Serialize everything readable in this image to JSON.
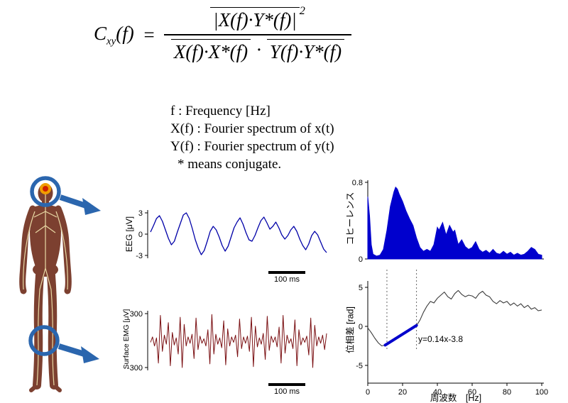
{
  "formula": {
    "lhs": "C",
    "lhs_sub": "xy",
    "lhs_arg": "(f)",
    "equals": "=",
    "numerator": "|X(f)·Y*(f)|",
    "exponent": "2",
    "den_left": "X(f)·X*(f)",
    "times": "·",
    "den_right": "Y(f)·Y*(f)"
  },
  "definitions": {
    "lines": [
      "f : Frequency [Hz]",
      "X(f) : Fourier spectrum of x(t)",
      "Y(f) : Fourier spectrum of y(t)",
      "* means conjugate."
    ]
  },
  "body_figure": {
    "ring_color": "#2b66ae",
    "arrow_color": "#2b66ae",
    "target_outer": "#f09d00",
    "target_inner": "#cf1f00",
    "body_color": "#7c4030",
    "nerve_color": "#e9d9a5"
  },
  "chart_data": [
    {
      "id": "eeg",
      "type": "line",
      "ylabel": "EEG [μV]",
      "yticks": [
        3,
        0,
        -3
      ],
      "ylim": [
        -3.6,
        3.6
      ],
      "scalebar_label": "100 ms",
      "color": "#0000a8",
      "values": [
        0.3,
        1.2,
        2.2,
        2.6,
        1.8,
        0.6,
        -0.6,
        -1.5,
        -1.0,
        0.3,
        1.5,
        2.7,
        3.0,
        2.2,
        0.8,
        -0.8,
        -2.0,
        -2.9,
        -2.3,
        -1.0,
        0.4,
        1.1,
        0.6,
        -0.4,
        -1.6,
        -2.4,
        -1.7,
        -0.4,
        0.9,
        1.7,
        2.3,
        1.4,
        0.2,
        -0.8,
        -1.0,
        -0.2,
        0.9,
        1.9,
        2.4,
        1.6,
        0.7,
        1.1,
        1.7,
        0.9,
        -0.1,
        -0.7,
        -0.2,
        0.6,
        1.1,
        0.4,
        -0.7,
        -1.6,
        -2.2,
        -1.4,
        -0.2,
        0.4,
        -0.1,
        -1.1,
        -2.1,
        -2.6
      ]
    },
    {
      "id": "emg",
      "type": "line",
      "ylabel": "Surface EMG [μV]",
      "yticks": [
        300,
        -300
      ],
      "ylim": [
        -320,
        320
      ],
      "scalebar_label": "100 ms",
      "color": "#7a0f12",
      "values": [
        -20,
        40,
        -60,
        30,
        -250,
        280,
        -120,
        60,
        -40,
        200,
        -280,
        90,
        -50,
        30,
        -150,
        260,
        -300,
        180,
        -60,
        40,
        -30,
        70,
        -200,
        250,
        -100,
        50,
        -30,
        20,
        -60,
        120,
        -260,
        290,
        -150,
        70,
        -40,
        30,
        -80,
        220,
        -270,
        130,
        -60,
        40,
        -20,
        60,
        -180,
        240,
        -90,
        40,
        -30,
        50,
        -120,
        260,
        -290,
        160,
        -70,
        30,
        -40,
        80,
        -210,
        270,
        -110,
        50,
        -20,
        40,
        -70,
        150,
        -250,
        280,
        -140,
        60,
        -30,
        20,
        -90,
        230,
        -280,
        120,
        -50,
        30,
        -20,
        50,
        -160,
        250,
        -300,
        170,
        -60,
        40,
        -30,
        60,
        -100,
        80
      ]
    },
    {
      "id": "coherence",
      "type": "area",
      "ylabel": "コヒーレンス",
      "yticks": [
        0.8,
        0
      ],
      "ylim": [
        0,
        0.8
      ],
      "xlim": [
        0,
        100
      ],
      "color": "#0000cd",
      "x": [
        0,
        1,
        2,
        3,
        5,
        7,
        9,
        11,
        13,
        15,
        16,
        17,
        18,
        20,
        22,
        24,
        26,
        28,
        30,
        32,
        34,
        36,
        38,
        40,
        41,
        43,
        45,
        47,
        49,
        50,
        52,
        54,
        56,
        58,
        60,
        62,
        64,
        66,
        68,
        70,
        72,
        74,
        76,
        78,
        80,
        82,
        84,
        86,
        88,
        90,
        92,
        94,
        96,
        98,
        100
      ],
      "values": [
        0.65,
        0.45,
        0.15,
        0.05,
        0.03,
        0.04,
        0.1,
        0.3,
        0.55,
        0.7,
        0.75,
        0.73,
        0.68,
        0.6,
        0.5,
        0.42,
        0.35,
        0.22,
        0.12,
        0.08,
        0.1,
        0.08,
        0.15,
        0.33,
        0.3,
        0.38,
        0.25,
        0.35,
        0.28,
        0.3,
        0.15,
        0.2,
        0.13,
        0.1,
        0.12,
        0.18,
        0.1,
        0.07,
        0.09,
        0.06,
        0.1,
        0.06,
        0.05,
        0.08,
        0.05,
        0.07,
        0.04,
        0.06,
        0.04,
        0.05,
        0.08,
        0.12,
        0.1,
        0.05,
        0.04
      ]
    },
    {
      "id": "phase",
      "type": "line",
      "ylabel": "位相差 [rad]",
      "xlabel": "周波数　[Hz]",
      "yticks": [
        5,
        0,
        -5
      ],
      "ylim": [
        -5.5,
        5.5
      ],
      "xticks": [
        0,
        20,
        40,
        60,
        80,
        100
      ],
      "xlim": [
        0,
        100
      ],
      "annotation": "y=0.14x-3.8",
      "fit": {
        "slope": 0.14,
        "intercept": -3.8,
        "x_start": 10,
        "x_end": 28,
        "color": "#0000cc"
      },
      "dotted_lines_x": [
        11,
        28
      ],
      "color": "#3a3a3a",
      "x": [
        0,
        2,
        4,
        6,
        8,
        10,
        12,
        14,
        16,
        18,
        20,
        22,
        24,
        26,
        28,
        30,
        32,
        34,
        36,
        38,
        40,
        42,
        44,
        46,
        48,
        50,
        52,
        54,
        56,
        58,
        60,
        62,
        64,
        66,
        68,
        70,
        72,
        74,
        76,
        78,
        80,
        82,
        84,
        86,
        88,
        90,
        92,
        94,
        96,
        98,
        100
      ],
      "values": [
        -0.2,
        -0.8,
        -1.5,
        -2.1,
        -2.5,
        -2.4,
        -2.1,
        -1.8,
        -1.6,
        -1.3,
        -1.0,
        -0.7,
        -0.4,
        -0.2,
        0.1,
        0.8,
        1.8,
        2.6,
        3.2,
        3.0,
        3.6,
        4.0,
        4.4,
        3.8,
        3.5,
        4.2,
        4.6,
        4.1,
        3.8,
        4.0,
        3.9,
        3.6,
        4.2,
        4.5,
        4.0,
        3.8,
        3.2,
        2.9,
        3.3,
        3.0,
        3.2,
        2.7,
        3.0,
        2.6,
        2.9,
        2.4,
        2.7,
        2.2,
        2.4,
        2.0,
        2.1
      ]
    }
  ]
}
